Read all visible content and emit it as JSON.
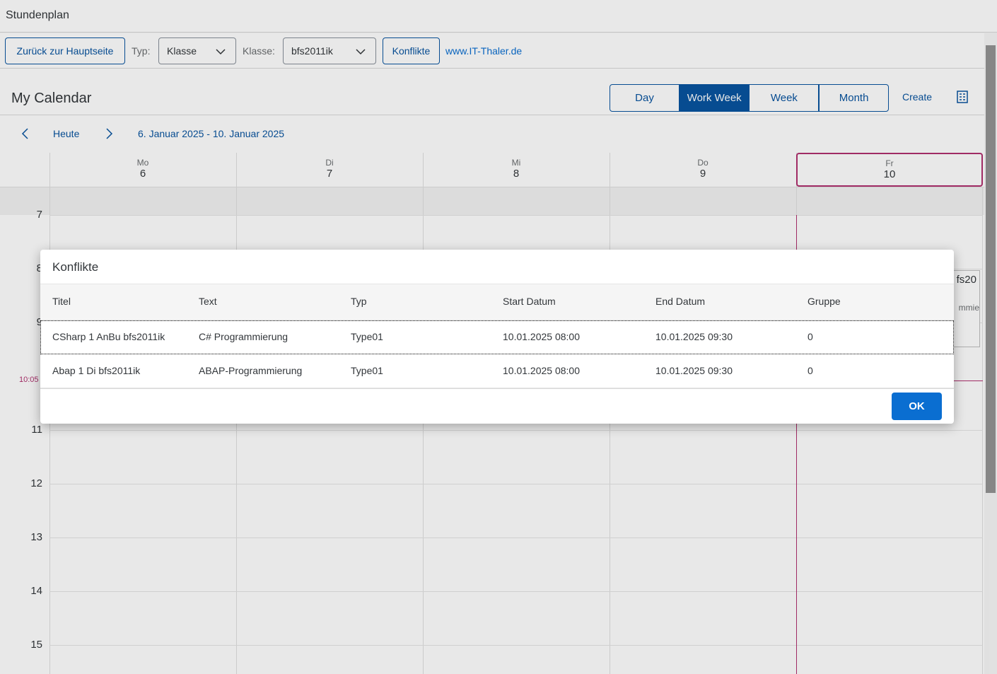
{
  "app": {
    "title": "Stundenplan"
  },
  "toolbar": {
    "back": "Zurück zur Hauptseite",
    "typ_label": "Typ:",
    "typ_value": "Klasse",
    "klasse_label": "Klasse:",
    "klasse_value": "bfs2011ik",
    "konflikte": "Konflikte",
    "link": "www.IT-Thaler.de"
  },
  "calendar": {
    "title": "My Calendar",
    "views": [
      "Day",
      "Work Week",
      "Week",
      "Month"
    ],
    "selected_view": "Work Week",
    "create": "Create",
    "today": "Heute",
    "range": "6. Januar 2025 - 10. Januar 2025",
    "days": [
      {
        "name": "Mo",
        "date": "6"
      },
      {
        "name": "Di",
        "date": "7"
      },
      {
        "name": "Mi",
        "date": "8"
      },
      {
        "name": "Do",
        "date": "9"
      },
      {
        "name": "Fr",
        "date": "10"
      }
    ],
    "hours": [
      "7",
      "8",
      "9",
      "11",
      "12",
      "13",
      "14",
      "15"
    ],
    "current_time": "10:05",
    "appointment": {
      "title": "fs20",
      "text": "mmie"
    }
  },
  "dialog": {
    "title": "Konflikte",
    "columns": [
      "Titel",
      "Text",
      "Typ",
      "Start Datum",
      "End Datum",
      "Gruppe"
    ],
    "rows": [
      [
        "CSharp 1 AnBu bfs2011ik",
        "C# Programmierung",
        "Type01",
        "10.01.2025 08:00",
        "10.01.2025 09:30",
        "0"
      ],
      [
        "Abap 1 Di bfs2011ik",
        "ABAP-Programmierung",
        "Type01",
        "10.01.2025 08:00",
        "10.01.2025 09:30",
        "0"
      ]
    ],
    "ok": "OK"
  }
}
